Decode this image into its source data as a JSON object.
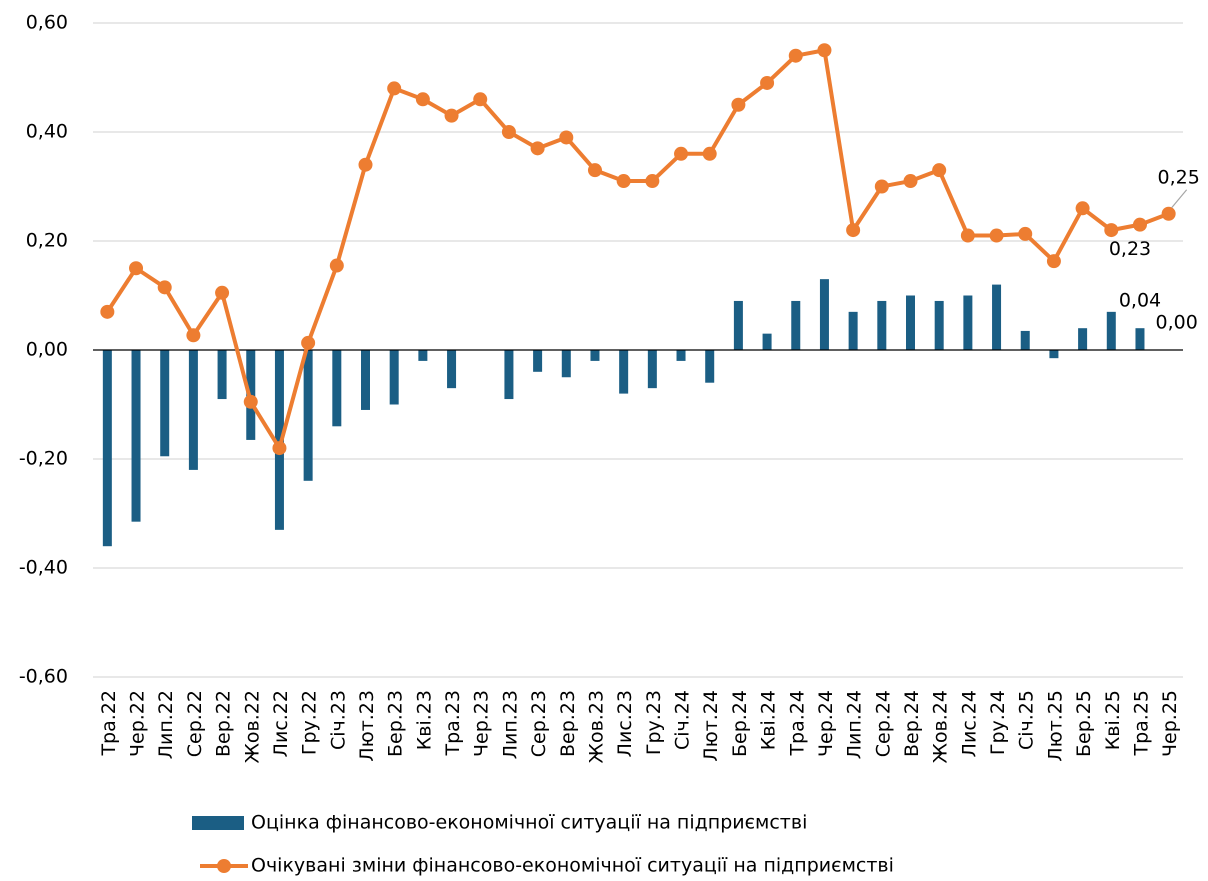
{
  "chart_data": {
    "type": "bar_line",
    "categories": [
      "Тра.22",
      "Чер.22",
      "Лип.22",
      "Сер.22",
      "Вер.22",
      "Жов.22",
      "Лис.22",
      "Гру.22",
      "Січ.23",
      "Лют.23",
      "Бер.23",
      "Кві.23",
      "Тра.23",
      "Чер.23",
      "Лип.23",
      "Сер.23",
      "Вер.23",
      "Жов.23",
      "Лис.23",
      "Гру.23",
      "Січ.24",
      "Лют.24",
      "Бер.24",
      "Кві.24",
      "Тра.24",
      "Чер.24",
      "Лип.24",
      "Сер.24",
      "Вер.24",
      "Жов.24",
      "Лис.24",
      "Гру.24",
      "Січ.25",
      "Лют.25",
      "Бер.25",
      "Кві.25",
      "Тра.25",
      "Чер.25"
    ],
    "series": [
      {
        "name": "Оцінка фінансово-економічної ситуації на підприємстві",
        "type": "bar",
        "color": "#1b5e84",
        "values": [
          -0.36,
          -0.315,
          -0.195,
          -0.22,
          -0.09,
          -0.165,
          -0.33,
          -0.24,
          -0.14,
          -0.11,
          -0.1,
          -0.02,
          -0.07,
          0,
          -0.09,
          -0.04,
          -0.05,
          -0.02,
          -0.08,
          -0.07,
          -0.02,
          -0.06,
          0.09,
          0.03,
          0.09,
          0.13,
          0.07,
          0.09,
          0.1,
          0.09,
          0.1,
          0.12,
          0.035,
          -0.015,
          0.04,
          0.07,
          0.04,
          0.0
        ],
        "value_labels": [
          null,
          null,
          null,
          null,
          null,
          null,
          null,
          null,
          null,
          null,
          null,
          null,
          null,
          null,
          null,
          null,
          null,
          null,
          null,
          null,
          null,
          null,
          null,
          null,
          null,
          null,
          null,
          null,
          null,
          null,
          null,
          null,
          null,
          null,
          null,
          null,
          "0,04",
          "0,00"
        ]
      },
      {
        "name": "Очікувані зміни фінансово-економічної ситуації на підприємстві",
        "type": "line",
        "color": "#ed7d31",
        "values": [
          0.07,
          0.15,
          0.115,
          0.027,
          0.105,
          -0.095,
          -0.18,
          0.013,
          0.155,
          0.34,
          0.48,
          0.46,
          0.43,
          0.46,
          0.4,
          0.37,
          0.39,
          0.33,
          0.31,
          0.31,
          0.36,
          0.36,
          0.45,
          0.49,
          0.54,
          0.55,
          0.22,
          0.3,
          0.31,
          0.33,
          0.21,
          0.21,
          0.213,
          0.163,
          0.26,
          0.22,
          0.23,
          0.25
        ],
        "value_labels": [
          null,
          null,
          null,
          null,
          null,
          null,
          null,
          null,
          null,
          null,
          null,
          null,
          null,
          null,
          null,
          null,
          null,
          null,
          null,
          null,
          null,
          null,
          null,
          null,
          null,
          null,
          null,
          null,
          null,
          null,
          null,
          null,
          null,
          null,
          null,
          null,
          "0,23",
          "0,25"
        ]
      }
    ],
    "ylim": [
      -0.6,
      0.6
    ],
    "yticks": [
      {
        "value": -0.6,
        "label": "-0,60"
      },
      {
        "value": -0.4,
        "label": "-0,40"
      },
      {
        "value": -0.2,
        "label": "-0,20"
      },
      {
        "value": 0,
        "label": "0,00"
      },
      {
        "value": 0.2,
        "label": "0,20"
      },
      {
        "value": 0.4,
        "label": "0,40"
      },
      {
        "value": 0.6,
        "label": "0,60"
      }
    ],
    "grid": true,
    "legend": "bottom"
  }
}
